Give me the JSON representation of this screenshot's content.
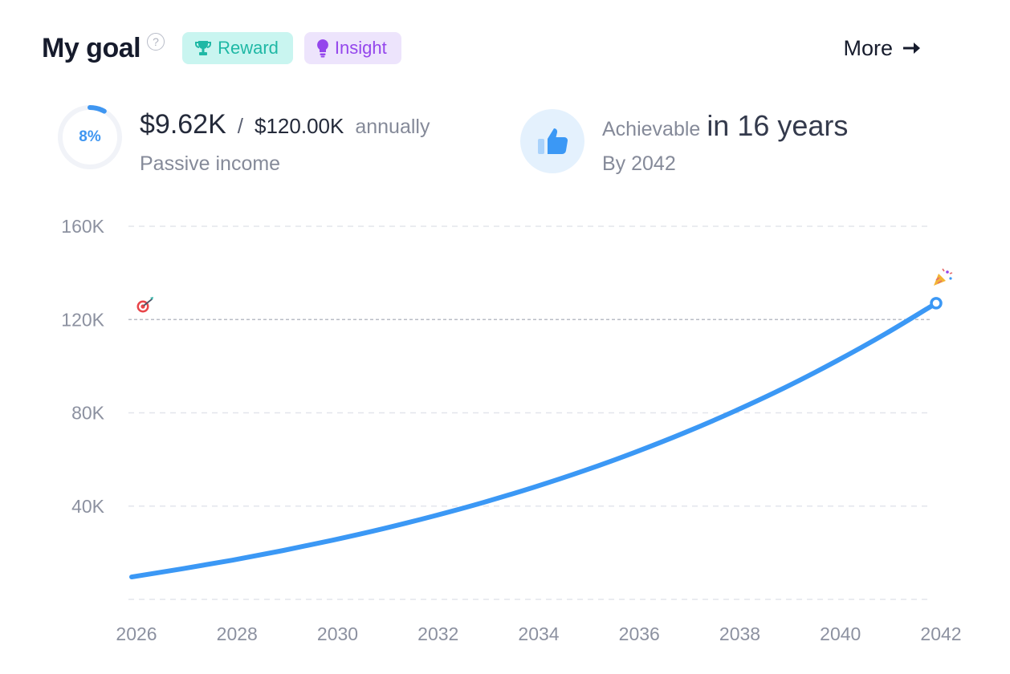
{
  "header": {
    "title": "My goal",
    "help_symbol": "?",
    "reward_label": "Reward",
    "insight_label": "Insight",
    "more_label": "More"
  },
  "stats": {
    "progress_percent": 8,
    "progress_label": "8%",
    "current_value": "$9.62K",
    "separator": "/",
    "target_value": "$120.00K",
    "period": "annually",
    "income_label": "Passive income",
    "achievable_label": "Achievable",
    "achievable_years": "in 16 years",
    "by_year": "By 2042"
  },
  "icons": {
    "help": "question-circle-icon",
    "reward": "trophy-icon",
    "insight": "lightbulb-icon",
    "more": "arrow-right-icon",
    "achievable": "thumbs-up-icon",
    "goal_marker": "target-dart-icon",
    "end_marker": "party-popper-icon"
  },
  "colors": {
    "line": "#3b98f5",
    "reward_bg": "#c9f5f0",
    "reward_text": "#1fb8a5",
    "insight_bg": "#ede4fc",
    "insight_text": "#9446ec",
    "progress": "#3f96f1"
  },
  "chart_data": {
    "type": "line",
    "title": "",
    "xlabel": "",
    "ylabel": "",
    "x": [
      2026,
      2027,
      2028,
      2029,
      2030,
      2031,
      2032,
      2033,
      2034,
      2035,
      2036,
      2037,
      2038,
      2039,
      2040,
      2041,
      2042
    ],
    "series": [
      {
        "values": [
          9620,
          13100,
          16800,
          20900,
          25400,
          30300,
          35700,
          41600,
          48100,
          55200,
          63000,
          71500,
          80800,
          90900,
          102000,
          114000,
          127000
        ]
      }
    ],
    "x_ticks": [
      2026,
      2028,
      2030,
      2032,
      2034,
      2036,
      2038,
      2040,
      2042
    ],
    "y_ticks": [
      40000,
      80000,
      120000,
      160000
    ],
    "y_tick_labels": [
      "40K",
      "80K",
      "120K",
      "160K"
    ],
    "ylim": [
      0,
      160000
    ],
    "xlim": [
      2026,
      2042
    ],
    "goal_line": 120000,
    "grid": true,
    "legend": "none"
  }
}
